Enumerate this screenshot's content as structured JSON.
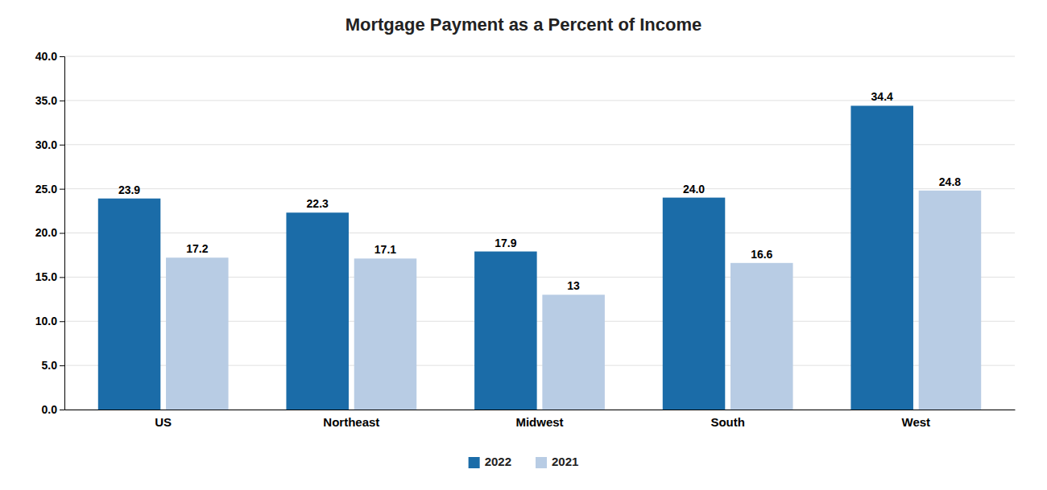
{
  "chart_data": {
    "type": "bar",
    "title": "Mortgage Payment as a Percent of Income",
    "categories": [
      "US",
      "Northeast",
      "Midwest",
      "South",
      "West"
    ],
    "series": [
      {
        "name": "2022",
        "color": "#1B6CA8",
        "values": [
          23.9,
          22.3,
          17.9,
          24.0,
          34.4
        ],
        "value_labels": [
          "23.9",
          "22.3",
          "17.9",
          "24.0",
          "34.4"
        ]
      },
      {
        "name": "2021",
        "color": "#B8CCE4",
        "values": [
          17.2,
          17.1,
          13.0,
          16.6,
          24.8
        ]
      }
    ],
    "ylim": [
      0,
      40.0
    ],
    "yticks": [
      {
        "value": 0.0,
        "label": "0.0"
      },
      {
        "value": 5.0,
        "label": "5.0"
      },
      {
        "value": 10.0,
        "label": "10.0"
      },
      {
        "value": 15.0,
        "label": "15.0"
      },
      {
        "value": 20.0,
        "label": "20.0"
      },
      {
        "value": 25.0,
        "label": "25.0"
      },
      {
        "value": 30.0,
        "label": "30.0"
      },
      {
        "value": 35.0,
        "label": "35.0"
      },
      {
        "value": 40.0,
        "label": "40.0"
      }
    ],
    "grid": true,
    "legend": "bottom",
    "data_labels": true
  }
}
